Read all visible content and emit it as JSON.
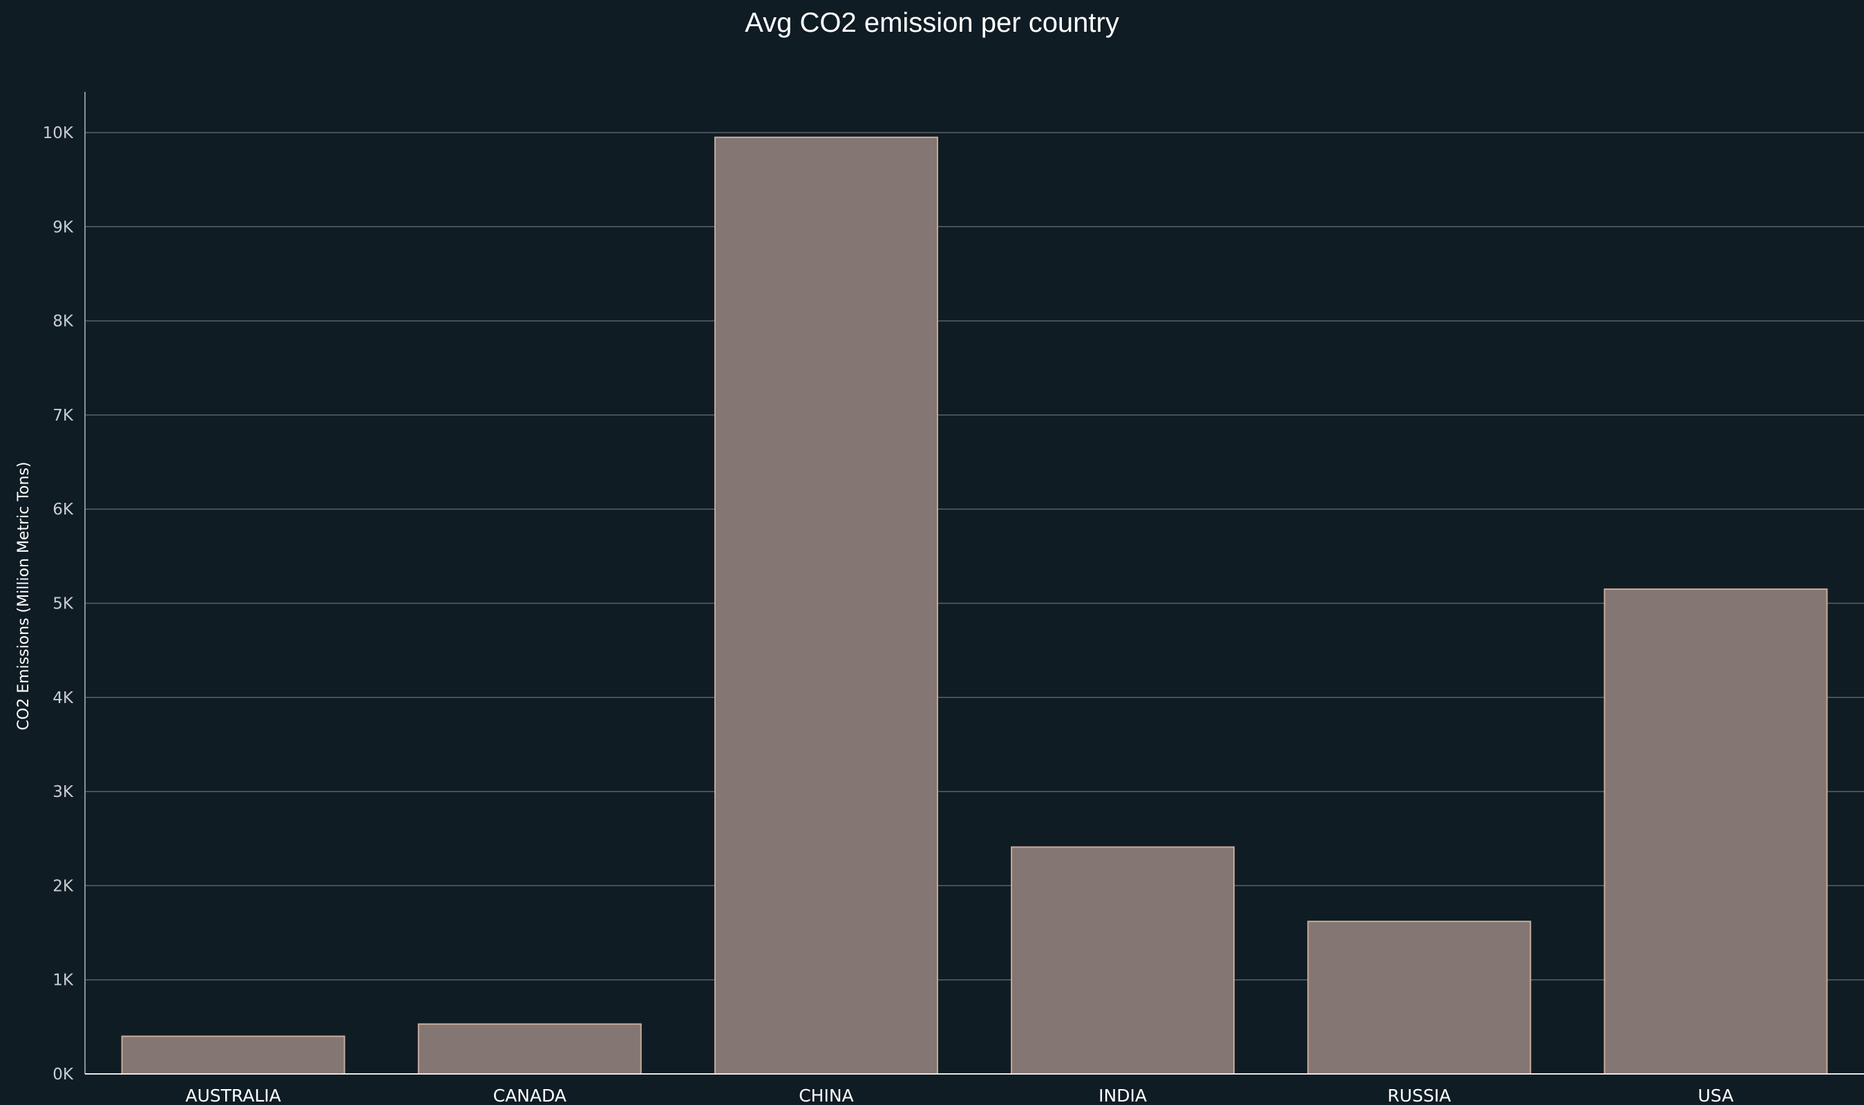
{
  "chart_data": {
    "type": "bar",
    "title": "Avg CO2 emission per country",
    "xlabel": "",
    "ylabel": "CO2 Emissions (Million Metric Tons)",
    "categories": [
      "AUSTRALIA",
      "CANADA",
      "CHINA",
      "INDIA",
      "RUSSIA",
      "USA"
    ],
    "values": [
      400,
      530,
      9950,
      2410,
      1620,
      5150
    ],
    "ylim": [
      0,
      10450
    ],
    "yticks": [
      0,
      1000,
      2000,
      3000,
      4000,
      5000,
      6000,
      7000,
      8000,
      9000,
      10000
    ],
    "ytick_labels": [
      "0K",
      "1K",
      "2K",
      "3K",
      "4K",
      "5K",
      "6K",
      "7K",
      "8K",
      "9K",
      "10K"
    ],
    "grid": true,
    "bar_color": "#847672",
    "bar_edge_color": "#c8aa9b",
    "background_color": "#101c24"
  }
}
